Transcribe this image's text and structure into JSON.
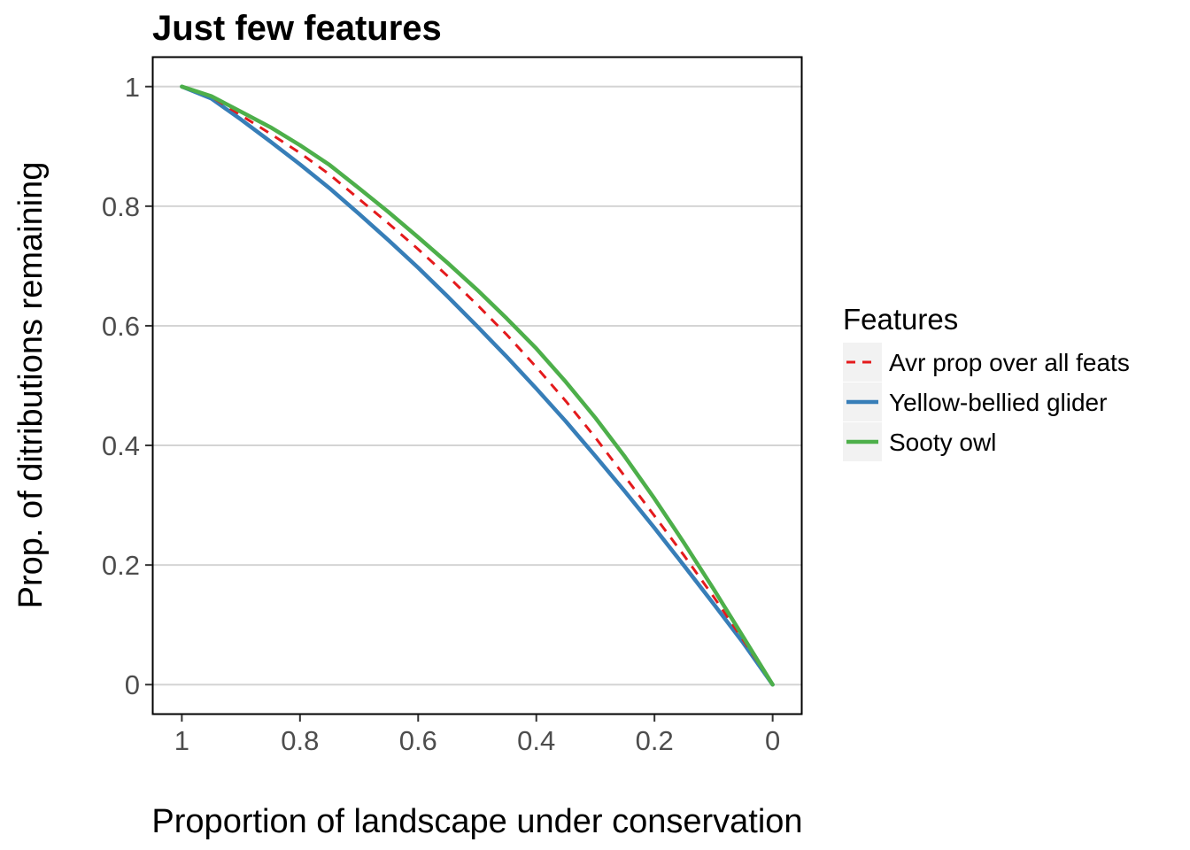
{
  "chart_data": {
    "type": "line",
    "title": "Just few features",
    "xlabel": "Proportion of landscape under conservation",
    "ylabel": "Prop. of ditributions remaining",
    "x_reversed": true,
    "xlim": [
      1.05,
      -0.05
    ],
    "ylim": [
      -0.05,
      1.05
    ],
    "x_ticks": [
      1,
      0.8,
      0.6,
      0.4,
      0.2,
      0
    ],
    "x_tick_labels": [
      "1",
      "0.8",
      "0.6",
      "0.4",
      "0.2",
      "0"
    ],
    "y_ticks": [
      0,
      0.2,
      0.4,
      0.6,
      0.8,
      1
    ],
    "y_tick_labels": [
      "0",
      "0.2",
      "0.4",
      "0.6",
      "0.8",
      "1"
    ],
    "grid": "horizontal major",
    "legend": {
      "title": "Features",
      "position": "right"
    },
    "series": [
      {
        "name": "Avr prop over all feats",
        "color": "#e41a1c",
        "dash": "dashed",
        "x": [
          1,
          0.95,
          0.9,
          0.85,
          0.8,
          0.75,
          0.7,
          0.65,
          0.6,
          0.55,
          0.5,
          0.45,
          0.4,
          0.35,
          0.3,
          0.25,
          0.2,
          0.15,
          0.1,
          0.05,
          0
        ],
        "y": [
          1,
          0.983,
          0.952,
          0.921,
          0.889,
          0.853,
          0.812,
          0.771,
          0.728,
          0.683,
          0.635,
          0.585,
          0.531,
          0.474,
          0.413,
          0.348,
          0.282,
          0.216,
          0.147,
          0.075,
          0
        ]
      },
      {
        "name": "Yellow-bellied glider",
        "color": "#377eb8",
        "dash": "solid",
        "x": [
          1,
          0.95,
          0.9,
          0.85,
          0.8,
          0.75,
          0.7,
          0.65,
          0.6,
          0.55,
          0.5,
          0.45,
          0.4,
          0.35,
          0.3,
          0.25,
          0.2,
          0.15,
          0.1,
          0.05,
          0
        ],
        "y": [
          1,
          0.98,
          0.945,
          0.908,
          0.87,
          0.83,
          0.787,
          0.743,
          0.697,
          0.649,
          0.599,
          0.548,
          0.495,
          0.44,
          0.382,
          0.323,
          0.262,
          0.199,
          0.135,
          0.07,
          0
        ]
      },
      {
        "name": "Sooty owl",
        "color": "#4daf4a",
        "dash": "solid",
        "x": [
          1,
          0.95,
          0.9,
          0.85,
          0.8,
          0.75,
          0.7,
          0.65,
          0.6,
          0.55,
          0.5,
          0.45,
          0.4,
          0.35,
          0.3,
          0.25,
          0.2,
          0.15,
          0.1,
          0.05,
          0
        ],
        "y": [
          1,
          0.984,
          0.958,
          0.932,
          0.902,
          0.869,
          0.83,
          0.79,
          0.748,
          0.705,
          0.66,
          0.612,
          0.562,
          0.506,
          0.446,
          0.381,
          0.311,
          0.237,
          0.16,
          0.08,
          0
        ]
      }
    ]
  }
}
